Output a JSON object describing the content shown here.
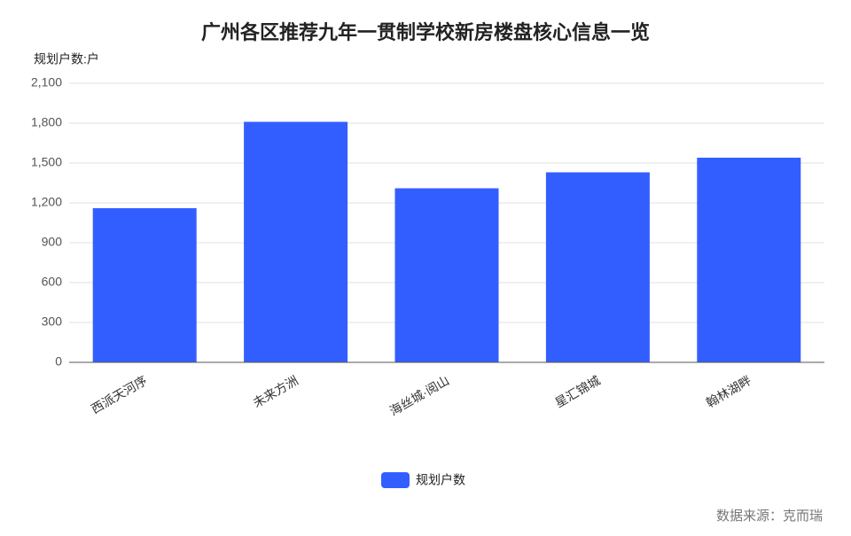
{
  "chart_data": {
    "type": "bar",
    "title": "广州各区推荐九年一贯制学校新房楼盘核心信息一览",
    "y_label": "规划户数:户",
    "source": "数据来源：克而瑞",
    "categories": [
      "西派天河序",
      "未来方洲",
      "海丝城·阅山",
      "星汇锦城",
      "翰林湖畔"
    ],
    "series": [
      {
        "name": "规划户数",
        "color": "#335eff",
        "values": [
          1160,
          1810,
          1310,
          1430,
          1540
        ]
      }
    ],
    "ylim": [
      0,
      2100
    ],
    "yticks": [
      0,
      300,
      600,
      900,
      {
        "value": 1200,
        "label": "1,200"
      },
      {
        "value": 1500,
        "label": "1,500"
      },
      {
        "value": 1800,
        "label": "1,800"
      },
      {
        "value": 2100,
        "label": "2,100"
      }
    ],
    "grid": true
  }
}
